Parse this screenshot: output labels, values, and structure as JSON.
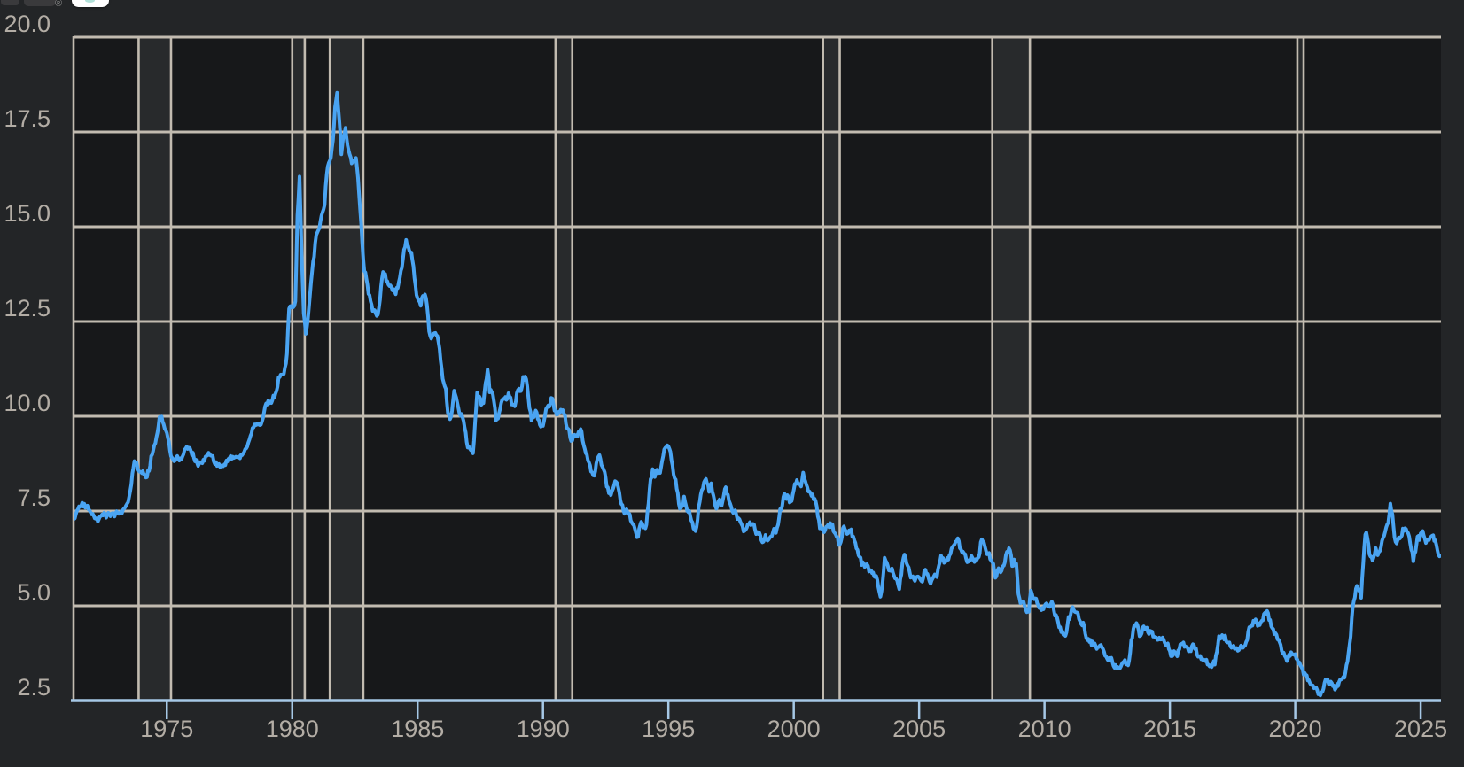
{
  "logo": {
    "registered_mark": "®"
  },
  "colors": {
    "outer_background": "#232527",
    "plot_background": "#17181a",
    "recession_band": "#282a2c",
    "gridline": "#c2bbb0",
    "series_line": "#4aa4f2",
    "axis_line": "#a6c8e6",
    "tick_mark": "#a6c8e6",
    "tick_label": "#b3ada5"
  },
  "chart_data": {
    "type": "line",
    "title": "",
    "xlabel": "",
    "ylabel": "",
    "x_domain": [
      1971.28,
      2025.81
    ],
    "y_domain": [
      2.5,
      20.0
    ],
    "y_ticks": [
      2.5,
      5.0,
      7.5,
      10.0,
      12.5,
      15.0,
      17.5,
      20.0
    ],
    "y_tick_labels": [
      "2.5",
      "5.0",
      "7.5",
      "10.0",
      "12.5",
      "15.0",
      "17.5",
      "20.0"
    ],
    "x_ticks": [
      1975,
      1980,
      1985,
      1990,
      1995,
      2000,
      2005,
      2010,
      2015,
      2020,
      2025
    ],
    "x_tick_labels": [
      "1975",
      "1980",
      "1985",
      "1990",
      "1995",
      "2000",
      "2005",
      "2010",
      "2015",
      "2020",
      "2025"
    ],
    "grid": true,
    "legend": false,
    "recession_bands": [
      [
        1973.875,
        1975.167
      ],
      [
        1980.0,
        1980.5
      ],
      [
        1981.5,
        1982.833
      ],
      [
        1990.5,
        1991.167
      ],
      [
        2001.167,
        2001.833
      ],
      [
        2007.917,
        2009.417
      ],
      [
        2020.083,
        2020.333
      ]
    ],
    "series": {
      "frequency": "monthly",
      "start_year": 1971,
      "start_month": 4,
      "values": [
        7.31,
        7.43,
        7.53,
        7.6,
        7.7,
        7.69,
        7.63,
        7.55,
        7.48,
        7.44,
        7.33,
        7.3,
        7.29,
        7.37,
        7.37,
        7.4,
        7.4,
        7.42,
        7.42,
        7.43,
        7.44,
        7.44,
        7.44,
        7.46,
        7.54,
        7.65,
        7.73,
        8.05,
        8.5,
        8.82,
        8.77,
        8.58,
        8.54,
        8.54,
        8.46,
        8.41,
        8.58,
        8.97,
        9.09,
        9.28,
        9.59,
        9.96,
        9.98,
        9.79,
        9.62,
        9.43,
        9.1,
        8.89,
        8.82,
        8.91,
        8.89,
        8.89,
        8.94,
        9.13,
        9.22,
        9.15,
        9.1,
        9.02,
        8.81,
        8.76,
        8.73,
        8.77,
        8.85,
        8.93,
        8.98,
        8.98,
        8.93,
        8.81,
        8.79,
        8.72,
        8.67,
        8.69,
        8.75,
        8.83,
        8.86,
        8.94,
        8.94,
        8.9,
        8.92,
        8.92,
        8.96,
        9.02,
        9.15,
        9.2,
        9.36,
        9.57,
        9.71,
        9.74,
        9.79,
        9.76,
        9.86,
        10.11,
        10.35,
        10.39,
        10.41,
        10.43,
        10.5,
        10.69,
        11.04,
        11.09,
        11.09,
        11.3,
        11.64,
        12.83,
        12.9,
        12.88,
        13.04,
        15.28,
        16.33,
        14.26,
        12.71,
        12.19,
        12.56,
        13.2,
        13.79,
        14.21,
        14.79,
        14.9,
        15.13,
        15.4,
        15.58,
        16.4,
        16.7,
        16.83,
        17.29,
        18.16,
        18.55,
        17.83,
        16.92,
        17.4,
        17.6,
        17.16,
        16.89,
        16.68,
        16.7,
        16.82,
        16.27,
        15.43,
        14.61,
        13.83,
        13.62,
        13.25,
        13.04,
        12.8,
        12.78,
        12.63,
        12.87,
        13.42,
        13.81,
        13.73,
        13.54,
        13.44,
        13.42,
        13.37,
        13.23,
        13.39,
        13.65,
        13.94,
        14.42,
        14.67,
        14.47,
        14.35,
        14.13,
        13.64,
        13.18,
        13.08,
        12.92,
        13.17,
        13.2,
        12.91,
        12.22,
        12.03,
        12.19,
        12.19,
        12.14,
        11.78,
        11.26,
        10.88,
        10.71,
        10.08,
        9.94,
        10.14,
        10.68,
        10.51,
        10.2,
        10.01,
        9.97,
        9.7,
        9.31,
        9.2,
        9.08,
        9.04,
        9.83,
        10.6,
        10.54,
        10.28,
        10.33,
        10.89,
        11.26,
        10.65,
        10.64,
        10.38,
        9.89,
        9.93,
        10.2,
        10.46,
        10.46,
        10.43,
        10.6,
        10.48,
        10.3,
        10.27,
        10.61,
        10.73,
        10.65,
        11.03,
        11.05,
        10.77,
        10.2,
        9.88,
        9.99,
        10.13,
        9.95,
        9.77,
        9.74,
        9.9,
        10.2,
        10.27,
        10.37,
        10.48,
        10.16,
        10.04,
        10.1,
        10.18,
        10.17,
        10.01,
        9.67,
        9.64,
        9.37,
        9.5,
        9.49,
        9.47,
        9.62,
        9.58,
        9.24,
        9.01,
        8.86,
        8.71,
        8.5,
        8.43,
        8.76,
        8.94,
        8.85,
        8.67,
        8.51,
        8.13,
        7.98,
        7.92,
        8.09,
        8.31,
        8.22,
        7.99,
        7.68,
        7.5,
        7.47,
        7.47,
        7.42,
        7.21,
        7.11,
        6.92,
        6.83,
        7.16,
        7.17,
        7.07,
        7.15,
        7.68,
        8.32,
        8.6,
        8.4,
        8.61,
        8.51,
        8.64,
        8.93,
        9.17,
        9.22,
        9.15,
        8.83,
        8.46,
        8.32,
        7.96,
        7.57,
        7.61,
        7.86,
        7.64,
        7.48,
        7.38,
        7.2,
        7.03,
        7.08,
        7.62,
        7.93,
        8.07,
        8.32,
        8.25,
        8.0,
        8.23,
        7.92,
        7.62,
        7.6,
        7.82,
        7.65,
        7.9,
        8.14,
        7.94,
        7.69,
        7.5,
        7.48,
        7.43,
        7.29,
        7.21,
        7.1,
        6.99,
        7.04,
        7.13,
        7.14,
        7.14,
        7.0,
        6.95,
        6.92,
        6.72,
        6.71,
        6.87,
        6.74,
        6.79,
        6.81,
        7.04,
        6.92,
        7.15,
        7.55,
        7.63,
        7.94,
        7.82,
        7.85,
        7.74,
        7.91,
        8.21,
        8.33,
        8.24,
        8.15,
        8.52,
        8.29,
        8.15,
        8.03,
        7.91,
        7.8,
        7.75,
        7.38,
        7.03,
        7.05,
        6.95,
        7.08,
        7.15,
        7.16,
        7.13,
        6.95,
        6.82,
        6.62,
        6.66,
        7.07,
        7.0,
        6.89,
        7.01,
        6.99,
        6.81,
        6.65,
        6.49,
        6.29,
        6.09,
        6.11,
        6.07,
        6.05,
        5.92,
        5.84,
        5.75,
        5.81,
        5.48,
        5.23,
        5.63,
        6.26,
        6.15,
        5.95,
        5.93,
        5.88,
        5.74,
        5.64,
        5.45,
        5.83,
        6.27,
        6.29,
        6.06,
        5.87,
        5.75,
        5.72,
        5.73,
        5.75,
        5.71,
        5.63,
        5.93,
        5.86,
        5.72,
        5.58,
        5.7,
        5.82,
        5.77,
        6.07,
        6.33,
        6.27,
        6.15,
        6.25,
        6.32,
        6.51,
        6.6,
        6.68,
        6.76,
        6.52,
        6.4,
        6.36,
        6.24,
        6.14,
        6.22,
        6.29,
        6.16,
        6.18,
        6.26,
        6.66,
        6.7,
        6.57,
        6.38,
        6.38,
        6.21,
        6.1,
        5.76,
        5.92,
        5.97,
        5.92,
        6.04,
        6.32,
        6.43,
        6.48,
        6.04,
        6.2,
        6.09,
        5.29,
        5.05,
        5.13,
        5.0,
        4.81,
        4.86,
        5.42,
        5.22,
        5.19,
        5.06,
        4.95,
        4.88,
        4.93,
        5.03,
        4.99,
        4.97,
        5.1,
        4.89,
        4.74,
        4.56,
        4.43,
        4.35,
        4.23,
        4.3,
        4.71,
        4.76,
        4.95,
        4.84,
        4.84,
        4.64,
        4.51,
        4.55,
        4.27,
        4.11,
        4.07,
        3.99,
        3.96,
        3.92,
        3.89,
        3.95,
        3.91,
        3.8,
        3.68,
        3.55,
        3.6,
        3.5,
        3.38,
        3.35,
        3.35,
        3.41,
        3.53,
        3.57,
        3.45,
        3.54,
        4.07,
        4.37,
        4.46,
        4.49,
        4.19,
        4.26,
        4.46,
        4.43,
        4.3,
        4.34,
        4.34,
        4.19,
        4.16,
        4.13,
        4.12,
        4.16,
        4.04,
        4.0,
        3.86,
        3.67,
        3.71,
        3.77,
        3.67,
        3.84,
        3.98,
        4.05,
        3.91,
        3.89,
        3.8,
        3.94,
        3.96,
        3.87,
        3.66,
        3.69,
        3.61,
        3.6,
        3.57,
        3.44,
        3.44,
        3.46,
        3.47,
        3.77,
        4.2,
        4.15,
        4.17,
        4.2,
        4.05,
        4.01,
        3.9,
        3.97,
        3.88,
        3.81,
        3.9,
        3.92,
        3.95,
        4.03,
        4.33,
        4.44,
        4.47,
        4.59,
        4.57,
        4.53,
        4.55,
        4.63,
        4.83,
        4.87,
        4.64,
        4.46,
        4.37,
        4.27,
        4.14,
        4.07,
        3.8,
        3.77,
        3.62,
        3.61,
        3.69,
        3.7,
        3.72,
        3.62,
        3.47,
        3.45,
        3.31,
        3.23,
        3.16,
        3.02,
        2.94,
        2.89,
        2.83,
        2.77,
        2.68,
        2.7,
        2.81,
        3.08,
        3.06,
        2.96,
        2.98,
        2.87,
        2.84,
        2.9,
        3.07,
        3.07,
        3.1,
        3.45,
        3.76,
        4.17,
        4.98,
        5.23,
        5.52,
        5.41,
        5.22,
        6.11,
        6.9,
        6.81,
        6.36,
        6.27,
        6.26,
        6.54,
        6.34,
        6.43,
        6.71,
        6.84,
        7.07,
        7.2,
        7.72,
        7.44,
        6.82,
        6.64,
        6.78,
        6.82,
        7.04,
        7.06,
        6.92,
        6.85,
        6.5,
        6.18,
        6.43,
        6.81,
        6.72,
        6.96,
        6.84,
        6.65,
        6.73,
        6.82,
        6.84,
        6.72,
        6.59,
        6.35,
        6.3
      ]
    }
  }
}
